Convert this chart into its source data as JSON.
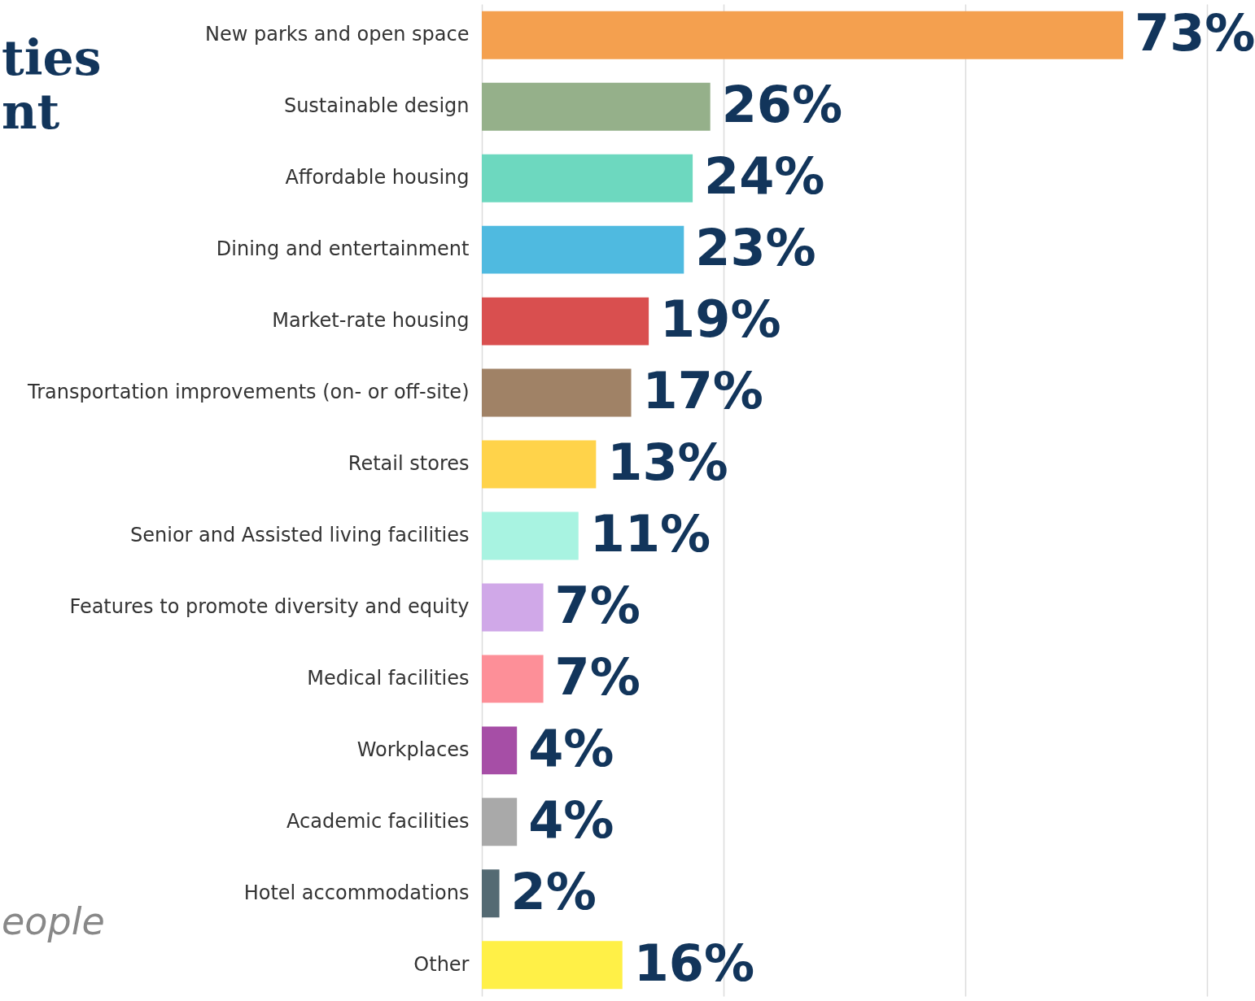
{
  "chart_data": {
    "type": "bar",
    "orientation": "horizontal",
    "title": "ties\nnt",
    "categories": [
      "New parks and open space",
      "Sustainable design",
      "Affordable housing",
      "Dining and entertainment",
      "Market-rate housing",
      "Transportation improvements (on- or off-site)",
      "Retail stores",
      "Senior and Assisted living facilities",
      "Features to promote diversity and equity",
      "Medical facilities",
      "Workplaces",
      "Academic facilities",
      "Hotel accommodations",
      "Other"
    ],
    "values": [
      73,
      26,
      24,
      23,
      19,
      17,
      13,
      11,
      7,
      7,
      4,
      4,
      2,
      16
    ],
    "colors": [
      "#f4a04f",
      "#95b08a",
      "#6dd8bf",
      "#4fbae0",
      "#d94f4f",
      "#a08266",
      "#ffd34a",
      "#a8f3e1",
      "#d0a8e8",
      "#fd8f98",
      "#a64ea6",
      "#a9a9a9",
      "#546a73",
      "#fff047"
    ],
    "xlim": [
      0,
      88
    ],
    "xticks": [
      {
        "value": 0,
        "label": null
      },
      {
        "value": 27.5,
        "label": null
      },
      {
        "value": 55,
        "label": null
      },
      {
        "value": 82.5,
        "label": null
      }
    ],
    "value_labels": [
      "73%",
      "26%",
      "24%",
      "23%",
      "19%",
      "17%",
      "13%",
      "11%",
      "7%",
      "7%",
      "4%",
      "4%",
      "2%",
      "16%"
    ],
    "tick_labels": "y",
    "grid": "x",
    "annotations": [
      "eople"
    ]
  }
}
